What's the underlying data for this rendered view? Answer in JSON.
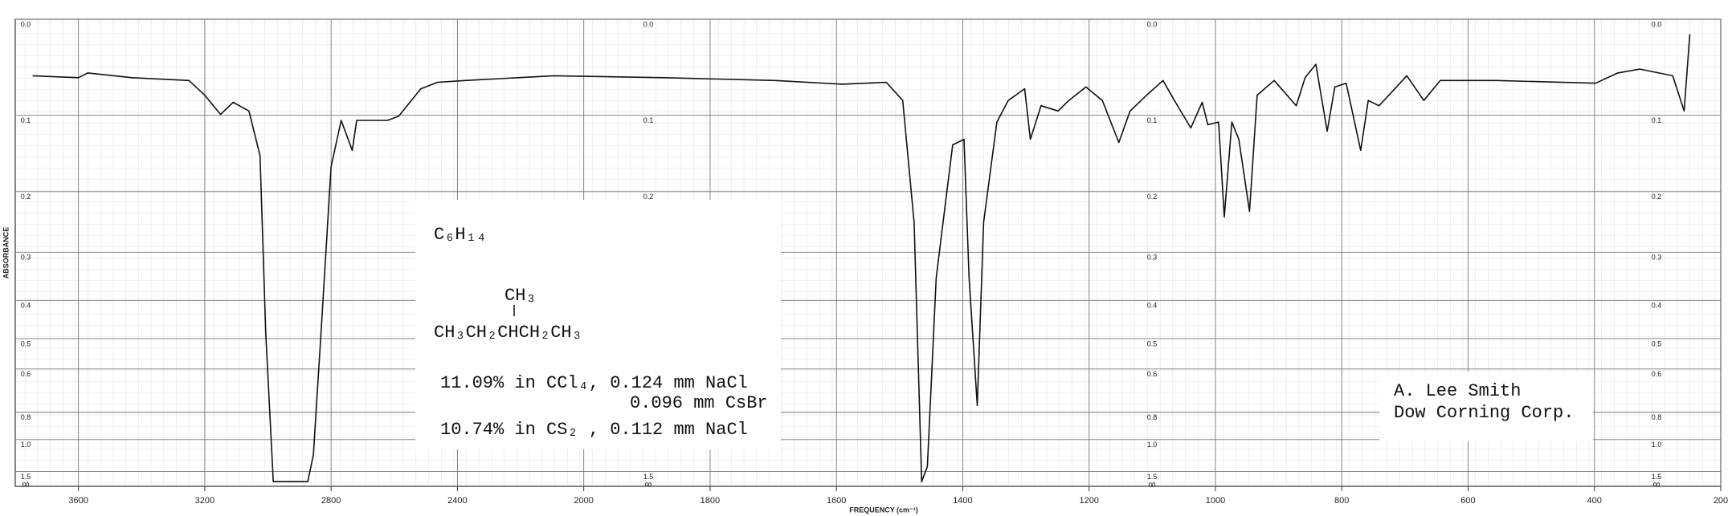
{
  "chart_data": {
    "type": "line",
    "xlabel": "FREQUENCY (cm⁻¹)",
    "ylabel": "ABSORBANCE",
    "xlim": [
      3800,
      200
    ],
    "x_scale_break": 2000,
    "xticks": [
      3600,
      3200,
      2800,
      2400,
      2000,
      1800,
      1600,
      1400,
      1200,
      1000,
      800,
      600,
      400,
      200
    ],
    "yscale": "transmittance",
    "yticks": [
      {
        "value": 0,
        "label": "0.0"
      },
      0.1,
      0.2,
      0.3,
      0.4,
      0.5,
      0.6,
      0.8,
      {
        "value": 1,
        "label": "1.0"
      },
      1.5
    ],
    "y_bottom_label": "∞",
    "grid": true,
    "color": "#111111",
    "x": [
      3745,
      3600,
      3570,
      3430,
      3250,
      3200,
      3150,
      3110,
      3060,
      3025,
      3007,
      2983,
      2955,
      2902,
      2874,
      2856,
      2832,
      2800,
      2768,
      2733,
      2719,
      2621,
      2586,
      2516,
      2463,
      2375,
      2095,
      1872,
      1697,
      1591,
      1521,
      1495,
      1477,
      1465,
      1456,
      1442,
      1416,
      1398,
      1390,
      1377,
      1367,
      1346,
      1328,
      1302,
      1293,
      1276,
      1249,
      1232,
      1205,
      1179,
      1153,
      1135,
      1109,
      1083,
      1065,
      1039,
      1021,
      1012,
      995,
      986,
      974,
      963,
      946,
      934,
      907,
      872,
      858,
      841,
      823,
      811,
      793,
      770,
      758,
      741,
      697,
      670,
      644,
      556,
      398,
      363,
      328,
      276,
      258,
      249
    ],
    "values": [
      0.056,
      0.058,
      0.053,
      0.058,
      0.061,
      0.077,
      0.099,
      0.085,
      0.095,
      0.15,
      0.484,
      2.0,
      2.0,
      2.0,
      2.0,
      1.17,
      0.484,
      0.165,
      0.106,
      0.143,
      0.106,
      0.106,
      0.101,
      0.07,
      0.063,
      0.061,
      0.056,
      0.058,
      0.061,
      0.065,
      0.063,
      0.083,
      0.248,
      2.0,
      1.37,
      0.35,
      0.136,
      0.129,
      0.35,
      0.762,
      0.248,
      0.108,
      0.083,
      0.07,
      0.129,
      0.089,
      0.095,
      0.083,
      0.068,
      0.083,
      0.133,
      0.095,
      0.077,
      0.061,
      0.083,
      0.115,
      0.085,
      0.111,
      0.108,
      0.239,
      0.108,
      0.129,
      0.23,
      0.077,
      0.061,
      0.089,
      0.058,
      0.044,
      0.119,
      0.068,
      0.064,
      0.143,
      0.083,
      0.089,
      0.056,
      0.083,
      0.061,
      0.061,
      0.064,
      0.053,
      0.049,
      0.056,
      0.095,
      0.014
    ]
  },
  "sample_box": {
    "formula": "C₆H₁₄",
    "branch": "CH₃",
    "structure": "CH₃CH₂CHCH₂CH₃",
    "conditions": [
      "11.09% in CCl₄, 0.124 mm NaCl",
      "0.096 mm CsBr",
      "10.74% in CS₂ , 0.112 mm NaCl"
    ]
  },
  "credit": [
    "A. Lee Smith",
    "Dow Corning Corp."
  ]
}
